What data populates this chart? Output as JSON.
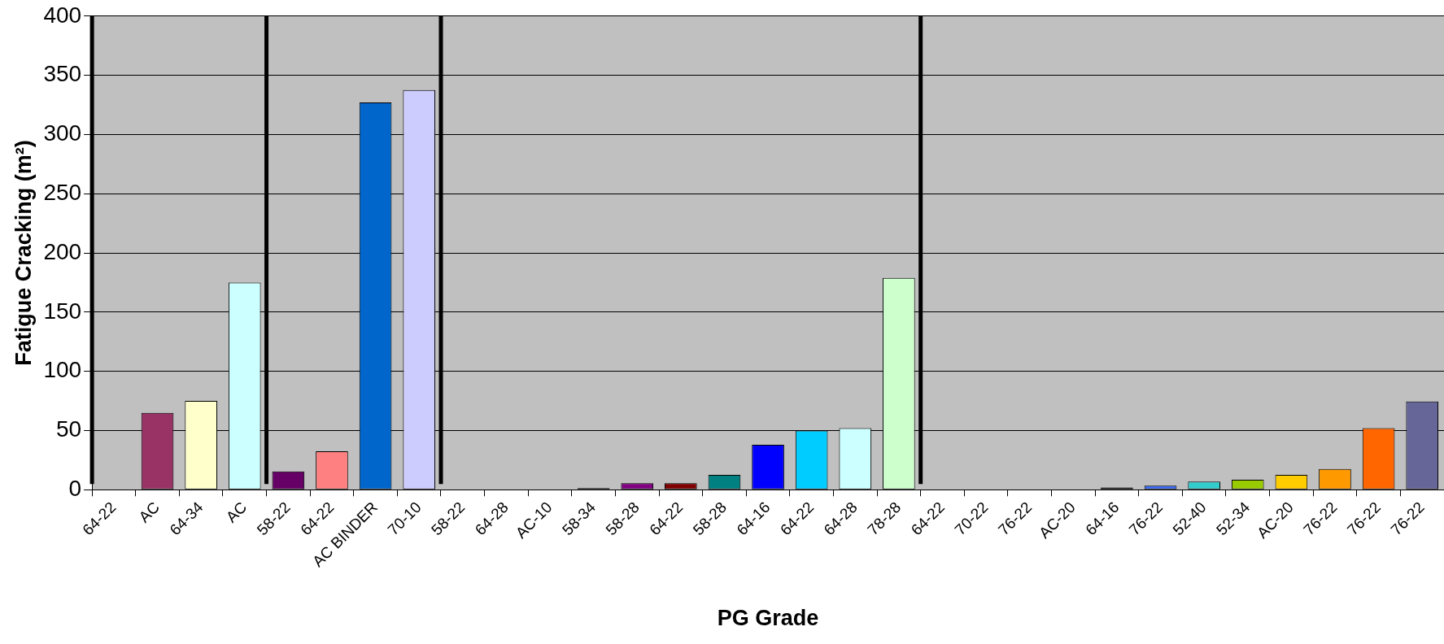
{
  "chart_data": {
    "type": "bar",
    "xlabel": "PG Grade",
    "ylabel": "Fatigue Cracking (m²)",
    "categories": [
      "64-22",
      "AC",
      "64-34",
      "AC",
      "58-22",
      "64-22",
      "AC BINDER",
      "70-10",
      "58-22",
      "64-28",
      "AC-10",
      "58-34",
      "58-28",
      "64-22",
      "58-28",
      "64-16",
      "64-22",
      "64-28",
      "78-28",
      "64-22",
      "70-22",
      "76-22",
      "AC-20",
      "64-16",
      "76-22",
      "52-40",
      "52-34",
      "AC-20",
      "76-22",
      "76-22",
      "76-22"
    ],
    "values": [
      0,
      65,
      75,
      175,
      15.5,
      32.5,
      327,
      337.5,
      0,
      0,
      0,
      1.5,
      5.5,
      5.5,
      12.5,
      38,
      50,
      52,
      179,
      0,
      0,
      0,
      0,
      2,
      3.5,
      7,
      8.5,
      12.5,
      17.5,
      52,
      74.5
    ],
    "colors": [
      "#000000",
      "#993366",
      "#ffffcc",
      "#ccffff",
      "#660066",
      "#ff8080",
      "#0066cc",
      "#ccccff",
      "#000000",
      "#000000",
      "#000000",
      "#000000",
      "#800080",
      "#800000",
      "#008080",
      "#0000ff",
      "#00ccff",
      "#ccffff",
      "#ccffcc",
      "#000000",
      "#000000",
      "#000000",
      "#000000",
      "#000000",
      "#3366ff",
      "#33cccc",
      "#99cc00",
      "#ffcc00",
      "#ff9900",
      "#ff6600",
      "#666699"
    ],
    "ylim": [
      0,
      400
    ],
    "yticks": [
      0,
      50,
      100,
      150,
      200,
      250,
      300,
      350,
      400
    ],
    "grid": "y",
    "legend": false
  }
}
